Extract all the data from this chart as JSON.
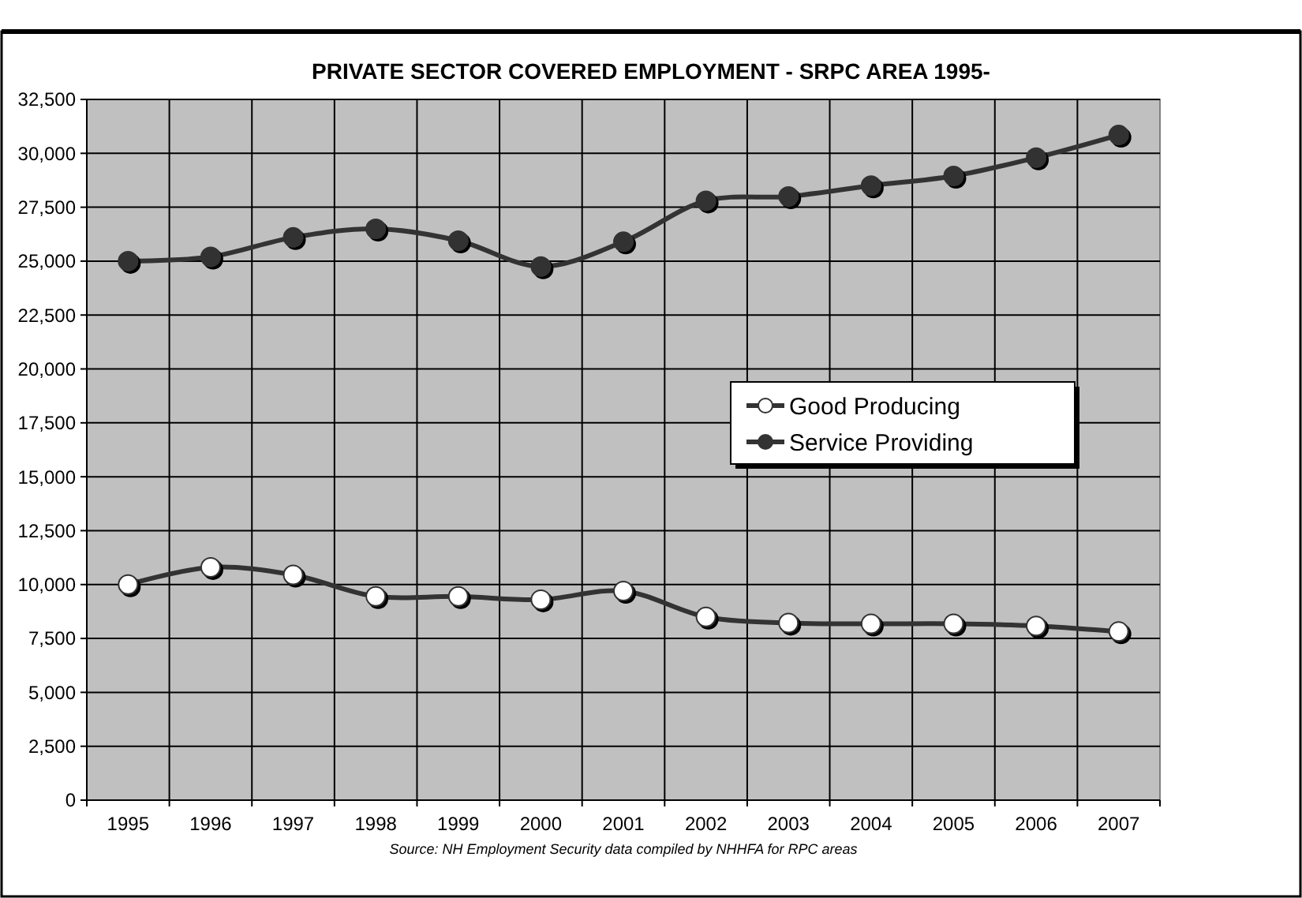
{
  "chart_data": {
    "type": "line",
    "title": "PRIVATE SECTOR COVERED EMPLOYMENT - SRPC AREA 1995-",
    "categories": [
      "1995",
      "1996",
      "1997",
      "1998",
      "1999",
      "2000",
      "2001",
      "2002",
      "2003",
      "2004",
      "2005",
      "2006",
      "2007"
    ],
    "series": [
      {
        "name": "Good Producing",
        "color": "#ffffff",
        "values": [
          10000,
          10800,
          10450,
          9450,
          9450,
          9300,
          9700,
          8500,
          8220,
          8180,
          8180,
          8080,
          7820
        ]
      },
      {
        "name": "Service Providing",
        "color": "#333333",
        "values": [
          25000,
          25200,
          26100,
          26500,
          25950,
          24750,
          25900,
          27800,
          28000,
          28500,
          28950,
          29800,
          30850
        ]
      }
    ],
    "ylim": [
      0,
      32500
    ],
    "yticks": [
      {
        "value": 0,
        "label": "0"
      },
      {
        "value": 2500,
        "label": "2,500"
      },
      {
        "value": 5000,
        "label": "5,000"
      },
      {
        "value": 7500,
        "label": "7,500"
      },
      {
        "value": 10000,
        "label": "10,000"
      },
      {
        "value": 12500,
        "label": "12,500"
      },
      {
        "value": 15000,
        "label": "15,000"
      },
      {
        "value": 17500,
        "label": "17,500"
      },
      {
        "value": 20000,
        "label": "20,000"
      },
      {
        "value": 22500,
        "label": "22,500"
      },
      {
        "value": 25000,
        "label": "25,000"
      },
      {
        "value": 27500,
        "label": "27,500"
      },
      {
        "value": 30000,
        "label": "30,000"
      },
      {
        "value": 32500,
        "label": "32,500"
      }
    ],
    "grid": true,
    "legend": "right",
    "marker": "circle",
    "line_style": "solid",
    "annotations": [
      "Source:  NH Employment Security data compiled by NHHFA for RPC areas"
    ]
  }
}
